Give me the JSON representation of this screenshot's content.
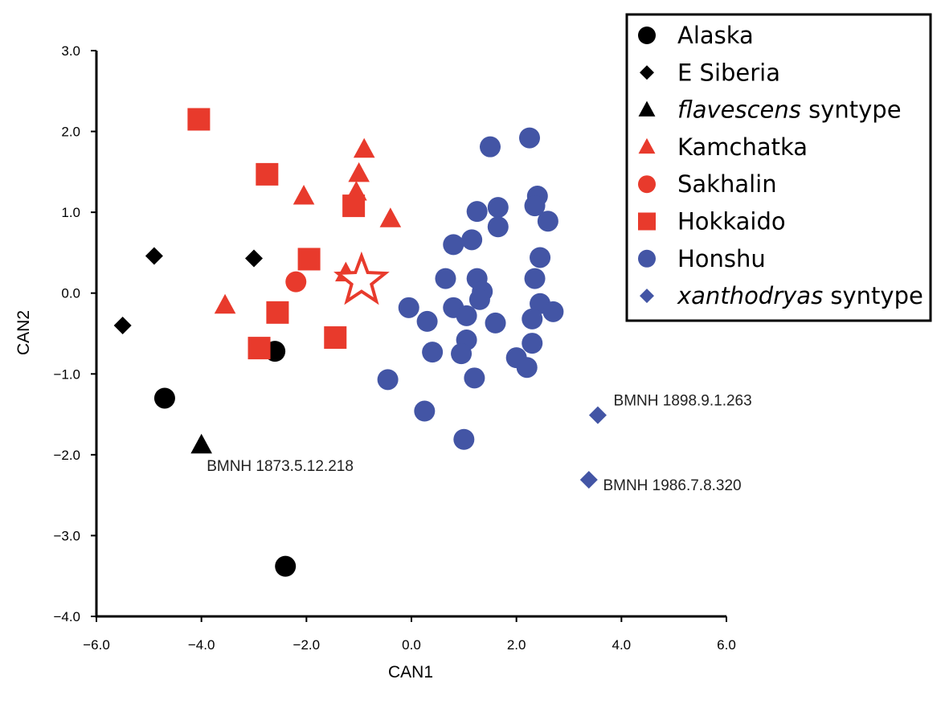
{
  "chart_data": {
    "type": "scatter",
    "title": "",
    "xlabel": "CAN1",
    "ylabel": "CAN2",
    "xlim": [
      -6.0,
      6.0
    ],
    "ylim": [
      -4.0,
      3.0
    ],
    "grid": false,
    "legend_position": "top-right",
    "x_ticks": [
      "−6.0",
      "−4.0",
      "−2.0",
      "0.0",
      "2.0",
      "4.0",
      "6.0"
    ],
    "y_ticks": [
      "−4.0",
      "−3.0",
      "−2.0",
      "−1.0",
      "0.0",
      "1.0",
      "2.0",
      "3.0"
    ],
    "colors": {
      "black": "#000000",
      "red": "#e83a2c",
      "blue": "#4355a5"
    },
    "series": [
      {
        "name": "Alaska",
        "marker": "circle",
        "color": "#000000",
        "points": [
          [
            -4.7,
            -1.3
          ],
          [
            -2.6,
            -0.72
          ],
          [
            -2.4,
            -3.38
          ]
        ]
      },
      {
        "name": "E Siberia",
        "marker": "diamond",
        "color": "#000000",
        "points": [
          [
            -4.9,
            0.46
          ],
          [
            -3.0,
            0.43
          ],
          [
            -5.5,
            -0.4
          ]
        ]
      },
      {
        "name_prefix": "flavescens",
        "name_suffix": " syntype",
        "marker": "triangle",
        "color": "#000000",
        "points": [
          [
            -4.0,
            -1.88
          ]
        ]
      },
      {
        "name": "Kamchatka",
        "marker": "triangle",
        "color": "#e83a2c",
        "points": [
          [
            -0.9,
            1.78
          ],
          [
            -1.0,
            1.48
          ],
          [
            -1.05,
            1.25
          ],
          [
            -2.05,
            1.2
          ],
          [
            -0.4,
            0.92
          ],
          [
            -1.25,
            0.25
          ],
          [
            -3.55,
            -0.15
          ]
        ]
      },
      {
        "name": "Sakhalin",
        "marker": "circle",
        "color": "#e83a2c",
        "points": [
          [
            -2.2,
            0.14
          ]
        ]
      },
      {
        "name": "Hokkaido",
        "marker": "square",
        "color": "#e83a2c",
        "points": [
          [
            -4.05,
            2.15
          ],
          [
            -2.75,
            1.47
          ],
          [
            -1.1,
            1.08
          ],
          [
            -1.95,
            0.42
          ],
          [
            -2.55,
            -0.24
          ],
          [
            -1.45,
            -0.55
          ],
          [
            -2.9,
            -0.68
          ]
        ]
      },
      {
        "name": "Honshu",
        "marker": "circle",
        "color": "#4355a5",
        "points": [
          [
            2.25,
            1.92
          ],
          [
            1.5,
            1.81
          ],
          [
            2.4,
            1.2
          ],
          [
            2.35,
            1.08
          ],
          [
            1.65,
            1.06
          ],
          [
            1.25,
            1.01
          ],
          [
            2.6,
            0.89
          ],
          [
            1.65,
            0.82
          ],
          [
            1.15,
            0.66
          ],
          [
            0.8,
            0.6
          ],
          [
            2.45,
            0.44
          ],
          [
            0.65,
            0.18
          ],
          [
            1.25,
            0.18
          ],
          [
            2.35,
            0.18
          ],
          [
            1.35,
            0.02
          ],
          [
            1.3,
            -0.08
          ],
          [
            2.45,
            -0.13
          ],
          [
            -0.05,
            -0.18
          ],
          [
            0.8,
            -0.18
          ],
          [
            2.7,
            -0.23
          ],
          [
            1.05,
            -0.28
          ],
          [
            0.3,
            -0.35
          ],
          [
            1.6,
            -0.37
          ],
          [
            2.3,
            -0.32
          ],
          [
            1.05,
            -0.58
          ],
          [
            2.3,
            -0.62
          ],
          [
            0.4,
            -0.73
          ],
          [
            0.95,
            -0.75
          ],
          [
            2.0,
            -0.8
          ],
          [
            2.2,
            -0.92
          ],
          [
            1.2,
            -1.05
          ],
          [
            -0.45,
            -1.07
          ],
          [
            0.25,
            -1.46
          ],
          [
            1.0,
            -1.81
          ]
        ]
      },
      {
        "name_prefix": "xanthodryas",
        "name_suffix": " syntype",
        "marker": "diamond",
        "color": "#4355a5",
        "points": [
          [
            3.55,
            -1.51
          ],
          [
            3.38,
            -2.31
          ]
        ]
      }
    ],
    "extra_markers": [
      {
        "marker": "star-outline",
        "color": "#e83a2c",
        "point": [
          -0.95,
          0.15
        ]
      }
    ],
    "annotations": [
      {
        "text": "BMNH 1873.5.12.218",
        "x": -3.9,
        "y": -2.2
      },
      {
        "text": "BMNH 1898.9.1.263",
        "x": 3.85,
        "y": -1.39
      },
      {
        "text": "BMNH 1986.7.8.320",
        "x": 3.65,
        "y": -2.44
      }
    ],
    "legend_entries": [
      {
        "text": "Alaska",
        "marker": "circle",
        "color": "#000000"
      },
      {
        "text": "E Siberia",
        "marker": "diamond",
        "color": "#000000"
      },
      {
        "italic": "flavescens",
        "text": " syntype",
        "marker": "triangle",
        "color": "#000000"
      },
      {
        "text": "Kamchatka",
        "marker": "triangle",
        "color": "#e83a2c"
      },
      {
        "text": "Sakhalin",
        "marker": "circle",
        "color": "#e83a2c"
      },
      {
        "text": "Hokkaido",
        "marker": "square",
        "color": "#e83a2c"
      },
      {
        "text": "Honshu",
        "marker": "circle",
        "color": "#4355a5"
      },
      {
        "italic": "xanthodryas",
        "text": " syntype",
        "marker": "diamond",
        "color": "#4355a5"
      }
    ]
  }
}
